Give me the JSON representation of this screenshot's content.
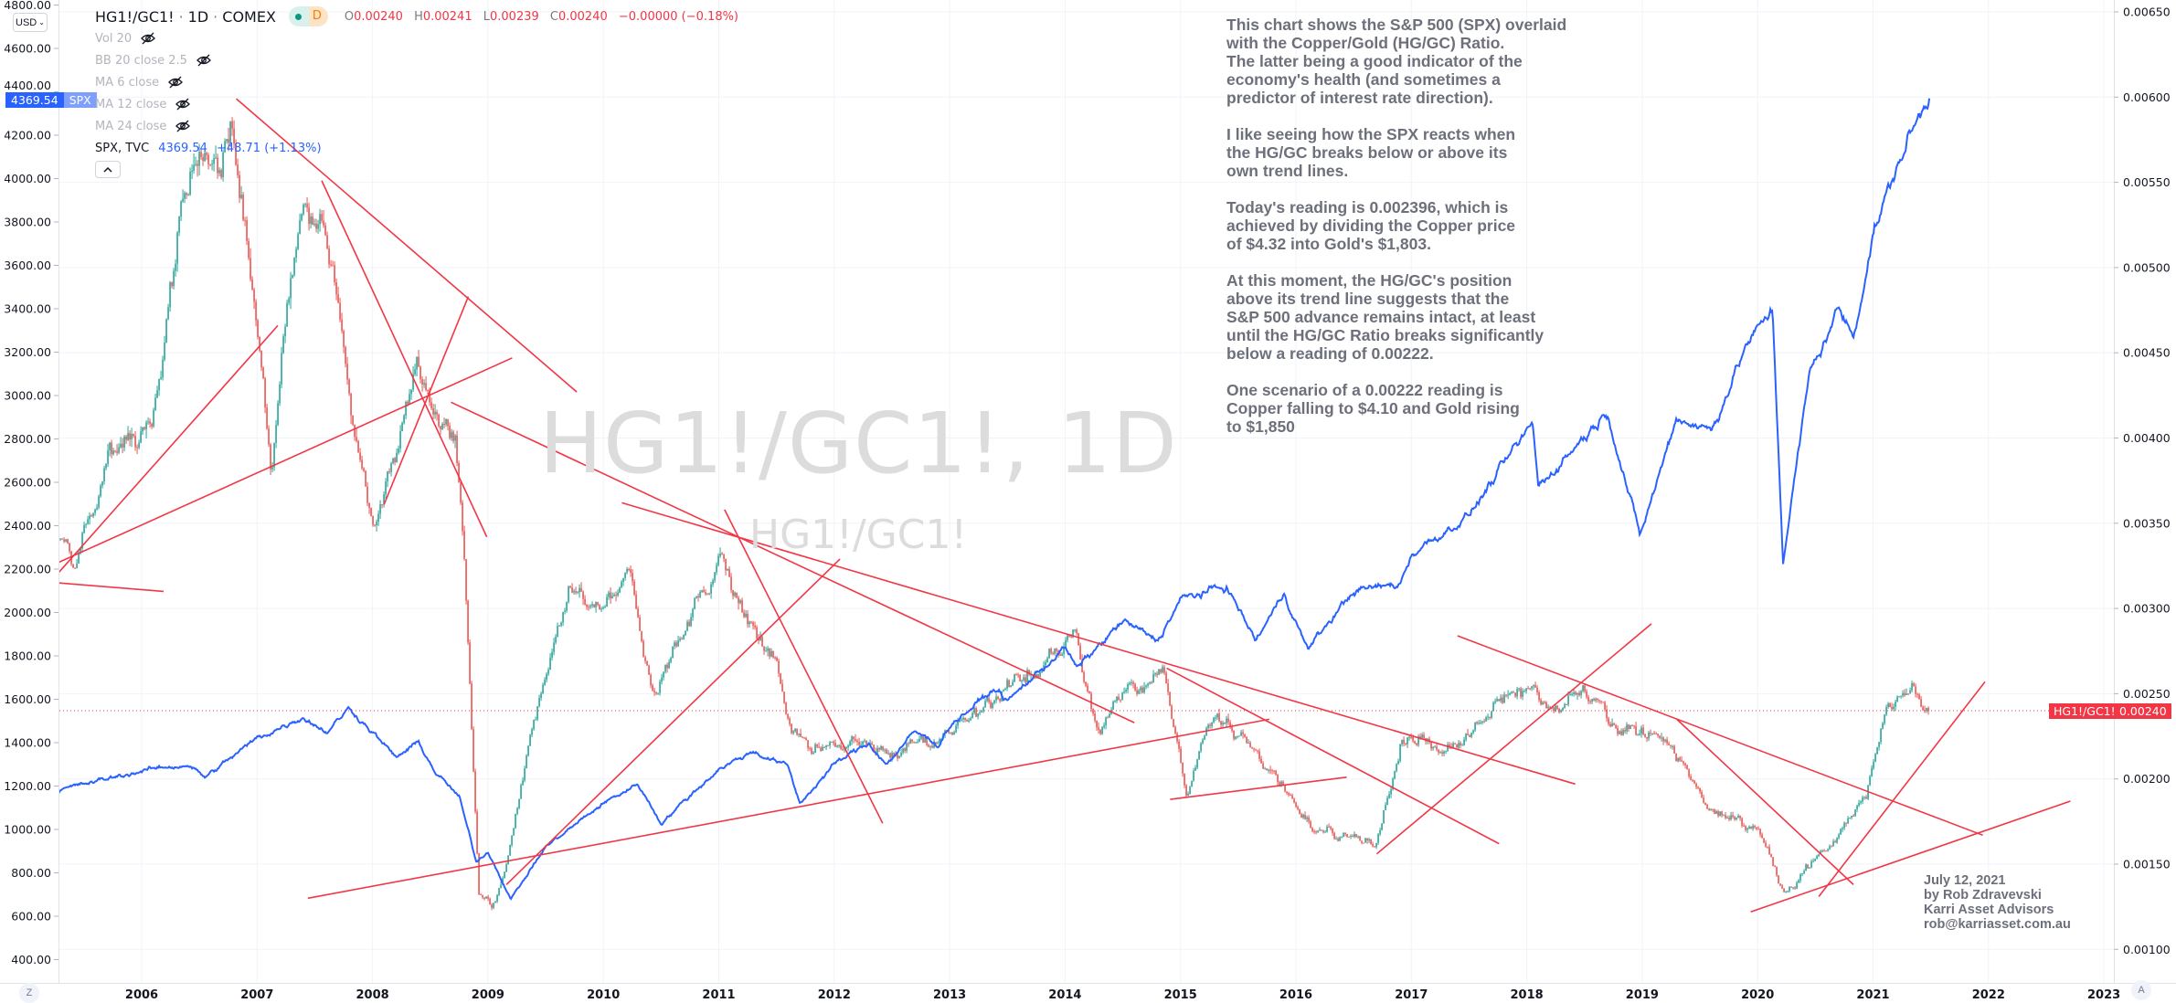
{
  "toolbar": {
    "currency_label": "USD"
  },
  "legend": {
    "symbol": "HG1!/GC1!",
    "interval": "1D",
    "exchange": "COMEX",
    "market_badge": "D",
    "ohlc": [
      {
        "k": "O",
        "v": "0.00240"
      },
      {
        "k": "H",
        "v": "0.00241"
      },
      {
        "k": "L",
        "v": "0.00239"
      },
      {
        "k": "C",
        "v": "0.00240"
      }
    ],
    "change": "−0.00000 (−0.18%)",
    "indicators": [
      "Vol 20",
      "BB 20 close 2.5",
      "MA 6 close",
      "MA 12 close",
      "MA 24 close"
    ],
    "overlay": {
      "name": "SPX, TVC",
      "price": "4369.54",
      "change": "+48.71 (+1.13%)"
    }
  },
  "price_tags": {
    "spx_value": "4369.54",
    "spx_name": "SPX",
    "ratio_name": "HG1!/GC1!",
    "ratio_value": "0.00240"
  },
  "watermark": {
    "main": "HG1!/GC1!, 1D",
    "sub": "HG1!/GC1!"
  },
  "note": [
    [
      "This chart shows the S&P 500 (SPX) overlaid",
      "with the Copper/Gold (HG/GC) Ratio.",
      "The latter being a good indicator of the",
      "economy's health (and sometimes a",
      "predictor of interest rate direction)."
    ],
    [
      "I like seeing how the SPX reacts when",
      "the HG/GC breaks below or above its",
      "own trend lines."
    ],
    [
      "Today's reading is 0.002396, which is",
      "achieved by dividing the Copper price",
      "of $4.32 into Gold's $1,803."
    ],
    [
      "At this moment, the HG/GC's position",
      "above its trend line suggests that the",
      "S&P 500 advance remains intact, at least",
      "until the HG/GC Ratio breaks significantly",
      "below a reading of 0.00222."
    ],
    [
      "One scenario of a 0.00222 reading is",
      "Copper falling to $4.10 and Gold rising",
      "to $1,850"
    ]
  ],
  "signature": [
    "July 12, 2021",
    "by Rob Zdravevski",
    "Karri Asset Advisors",
    "rob@karriasset.com.au"
  ],
  "bottom_buttons": {
    "left": "Z",
    "right": "A"
  },
  "colors": {
    "spx": "#2962ff",
    "up": "#26a69a",
    "down": "#ef5350",
    "trendline": "#f23645",
    "grid": "#f0f3fa"
  },
  "chart_data": {
    "type": "candlestick+line",
    "x_axis": {
      "ticks": [
        "2006",
        "2007",
        "2008",
        "2009",
        "2010",
        "2011",
        "2012",
        "2013",
        "2014",
        "2015",
        "2016",
        "2017",
        "2018",
        "2019",
        "2020",
        "2021",
        "2022",
        "2023"
      ],
      "range": [
        2005.28,
        2023.1
      ]
    },
    "y_left": {
      "ticks": [
        "4800.00",
        "4600.00",
        "4400.00",
        "4200.00",
        "4000.00",
        "3800.00",
        "3600.00",
        "3400.00",
        "3200.00",
        "3000.00",
        "2800.00",
        "2600.00",
        "2400.00",
        "2200.00",
        "2000.00",
        "1800.00",
        "1600.00",
        "1400.00",
        "1200.00",
        "1000.00",
        "800.00",
        "600.00",
        "400.00"
      ],
      "range": [
        400,
        4800
      ]
    },
    "y_right": {
      "ticks": [
        "0.00650",
        "0.00600",
        "0.00550",
        "0.00500",
        "0.00450",
        "0.00400",
        "0.00350",
        "0.00300",
        "0.00250",
        "0.00200",
        "0.00150",
        "0.00100"
      ],
      "range": [
        0.001,
        0.0065
      ]
    },
    "grid": true,
    "series": [
      {
        "name": "SPX",
        "type": "line",
        "axis": "left",
        "points": [
          [
            2005.28,
            1180
          ],
          [
            2005.6,
            1220
          ],
          [
            2006.0,
            1270
          ],
          [
            2006.4,
            1300
          ],
          [
            2006.55,
            1240
          ],
          [
            2007.0,
            1420
          ],
          [
            2007.4,
            1520
          ],
          [
            2007.6,
            1450
          ],
          [
            2007.8,
            1560
          ],
          [
            2008.0,
            1450
          ],
          [
            2008.2,
            1330
          ],
          [
            2008.4,
            1400
          ],
          [
            2008.55,
            1260
          ],
          [
            2008.75,
            1150
          ],
          [
            2008.9,
            850
          ],
          [
            2009.0,
            900
          ],
          [
            2009.2,
            680
          ],
          [
            2009.5,
            920
          ],
          [
            2010.0,
            1120
          ],
          [
            2010.3,
            1210
          ],
          [
            2010.5,
            1030
          ],
          [
            2010.8,
            1180
          ],
          [
            2011.0,
            1280
          ],
          [
            2011.3,
            1360
          ],
          [
            2011.6,
            1290
          ],
          [
            2011.7,
            1120
          ],
          [
            2012.0,
            1300
          ],
          [
            2012.3,
            1400
          ],
          [
            2012.45,
            1300
          ],
          [
            2012.7,
            1450
          ],
          [
            2012.9,
            1390
          ],
          [
            2013.0,
            1480
          ],
          [
            2013.4,
            1650
          ],
          [
            2013.5,
            1590
          ],
          [
            2014.0,
            1840
          ],
          [
            2014.1,
            1740
          ],
          [
            2014.5,
            1960
          ],
          [
            2014.8,
            1870
          ],
          [
            2015.0,
            2060
          ],
          [
            2015.4,
            2120
          ],
          [
            2015.65,
            1870
          ],
          [
            2015.9,
            2090
          ],
          [
            2016.1,
            1830
          ],
          [
            2016.5,
            2100
          ],
          [
            2016.9,
            2130
          ],
          [
            2017.0,
            2270
          ],
          [
            2017.5,
            2450
          ],
          [
            2018.05,
            2870
          ],
          [
            2018.1,
            2580
          ],
          [
            2018.7,
            2930
          ],
          [
            2018.98,
            2350
          ],
          [
            2019.3,
            2900
          ],
          [
            2019.6,
            2840
          ],
          [
            2019.9,
            3230
          ],
          [
            2020.13,
            3390
          ],
          [
            2020.22,
            2240
          ],
          [
            2020.45,
            3100
          ],
          [
            2020.7,
            3400
          ],
          [
            2020.83,
            3270
          ],
          [
            2021.0,
            3750
          ],
          [
            2021.3,
            4180
          ],
          [
            2021.49,
            4369.54
          ]
        ]
      },
      {
        "name": "HG1!/GC1!",
        "type": "candlestick",
        "axis": "right",
        "points": [
          [
            2005.28,
            0.0034
          ],
          [
            2005.43,
            0.00324
          ],
          [
            2005.73,
            0.00388
          ],
          [
            2006.1,
            0.00413
          ],
          [
            2006.34,
            0.00527
          ],
          [
            2006.46,
            0.00559
          ],
          [
            2006.76,
            0.00592
          ],
          [
            2006.82,
            0.00576
          ],
          [
            2006.94,
            0.00494
          ],
          [
            2007.06,
            0.00429
          ],
          [
            2007.12,
            0.0038
          ],
          [
            2007.24,
            0.0047
          ],
          [
            2007.36,
            0.00535
          ],
          [
            2007.54,
            0.00543
          ],
          [
            2007.72,
            0.00478
          ],
          [
            2007.84,
            0.00397
          ],
          [
            2008.02,
            0.00356
          ],
          [
            2008.2,
            0.00397
          ],
          [
            2008.38,
            0.00453
          ],
          [
            2008.56,
            0.00413
          ],
          [
            2008.72,
            0.00413
          ],
          [
            2008.8,
            0.0033
          ],
          [
            2008.92,
            0.00135
          ],
          [
            2009.04,
            0.00128
          ],
          [
            2009.16,
            0.00152
          ],
          [
            2009.4,
            0.00234
          ],
          [
            2009.7,
            0.00307
          ],
          [
            2010.06,
            0.00299
          ],
          [
            2010.24,
            0.00315
          ],
          [
            2010.42,
            0.0025
          ],
          [
            2010.66,
            0.00283
          ],
          [
            2011.02,
            0.00331
          ],
          [
            2011.2,
            0.00299
          ],
          [
            2011.51,
            0.00266
          ],
          [
            2011.63,
            0.00226
          ],
          [
            2011.87,
            0.00218
          ],
          [
            2012.11,
            0.00226
          ],
          [
            2012.47,
            0.00213
          ],
          [
            2012.83,
            0.00218
          ],
          [
            2013.19,
            0.00234
          ],
          [
            2013.55,
            0.00258
          ],
          [
            2013.91,
            0.00274
          ],
          [
            2014.09,
            0.00283
          ],
          [
            2014.27,
            0.0023
          ],
          [
            2014.51,
            0.0025
          ],
          [
            2014.87,
            0.00258
          ],
          [
            2015.05,
            0.00193
          ],
          [
            2015.29,
            0.00242
          ],
          [
            2015.59,
            0.00218
          ],
          [
            2015.83,
            0.00201
          ],
          [
            2016.14,
            0.00169
          ],
          [
            2016.32,
            0.00169
          ],
          [
            2016.68,
            0.00161
          ],
          [
            2016.92,
            0.00226
          ],
          [
            2017.28,
            0.00218
          ],
          [
            2017.52,
            0.00226
          ],
          [
            2017.76,
            0.0025
          ],
          [
            2018.0,
            0.00254
          ],
          [
            2018.24,
            0.00242
          ],
          [
            2018.48,
            0.0025
          ],
          [
            2018.84,
            0.00226
          ],
          [
            2019.2,
            0.00226
          ],
          [
            2019.56,
            0.00185
          ],
          [
            2019.8,
            0.00177
          ],
          [
            2020.04,
            0.00169
          ],
          [
            2020.22,
            0.00136
          ],
          [
            2020.4,
            0.00144
          ],
          [
            2020.64,
            0.00161
          ],
          [
            2020.94,
            0.00193
          ],
          [
            2021.12,
            0.00242
          ],
          [
            2021.24,
            0.0025
          ],
          [
            2021.34,
            0.00262
          ],
          [
            2021.49,
            0.0024
          ]
        ]
      }
    ],
    "last_value": {
      "ratio": 0.0024,
      "spx": 4369.54
    },
    "trendlines": [
      [
        2005.28,
        0.00321,
        2007.18,
        0.00466
      ],
      [
        2005.28,
        0.00315,
        2006.19,
        0.0031
      ],
      [
        2005.28,
        0.00327,
        2009.21,
        0.00447
      ],
      [
        2006.82,
        0.00599,
        2009.77,
        0.00427
      ],
      [
        2007.56,
        0.00551,
        2008.99,
        0.00342
      ],
      [
        2008.1,
        0.00361,
        2008.83,
        0.00483
      ],
      [
        2008.68,
        0.00421,
        2014.6,
        0.00233
      ],
      [
        2010.16,
        0.00362,
        2018.42,
        0.00197
      ],
      [
        2011.05,
        0.00358,
        2012.42,
        0.00174
      ],
      [
        2007.44,
        0.0013,
        2015.77,
        0.00235
      ],
      [
        2009.16,
        0.00138,
        2012.05,
        0.00329
      ],
      [
        2014.88,
        0.00265,
        2017.76,
        0.00162
      ],
      [
        2014.91,
        0.00188,
        2016.44,
        0.00201
      ],
      [
        2016.7,
        0.00156,
        2019.08,
        0.00291
      ],
      [
        2017.4,
        0.00284,
        2021.95,
        0.00167
      ],
      [
        2019.3,
        0.00235,
        2020.83,
        0.00138
      ],
      [
        2019.94,
        0.00122,
        2022.71,
        0.00187
      ],
      [
        2020.53,
        0.00131,
        2021.97,
        0.00257
      ]
    ]
  }
}
